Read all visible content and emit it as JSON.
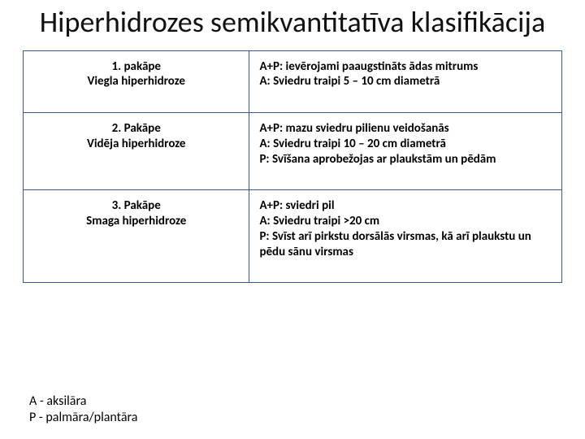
{
  "title": "Hiperhidrozes semikvantitatīva klasifikācija",
  "table": {
    "border_color": "#3a5a8a",
    "rows": [
      {
        "stage_line1": "1.   pakāpe",
        "stage_line2": "Viegla hiperhidroze",
        "desc": [
          "A+P: ievērojami paaugstināts ādas mitrums",
          "A: Sviedru traipi 5 – 10 cm diametrā"
        ]
      },
      {
        "stage_line1": "2. Pakāpe",
        "stage_line2": "Vidēja hiperhidroze",
        "desc": [
          "A+P: mazu sviedru pilienu veidošanās",
          "A: Sviedru traipi 10 – 20 cm diametrā",
          "P: Svīšana aprobežojas ar plaukstām un pēdām"
        ]
      },
      {
        "stage_line1": "3. Pakāpe",
        "stage_line2": "Smaga hiperhidroze",
        "desc": [
          "A+P: sviedri pil",
          "A: Sviedru traipi >20 cm",
          "P: Svīst arī pirkstu dorsālās virsmas, kā arī plaukstu un pēdu sānu virsmas"
        ]
      }
    ]
  },
  "legend": {
    "a": "A - aksilāra",
    "p": "P - palmāra/plantāra"
  },
  "style": {
    "title_fontsize": 36,
    "cell_fontsize": 15,
    "legend_fontsize": 16,
    "background_color": "#ffffff",
    "text_color": "#000000"
  }
}
